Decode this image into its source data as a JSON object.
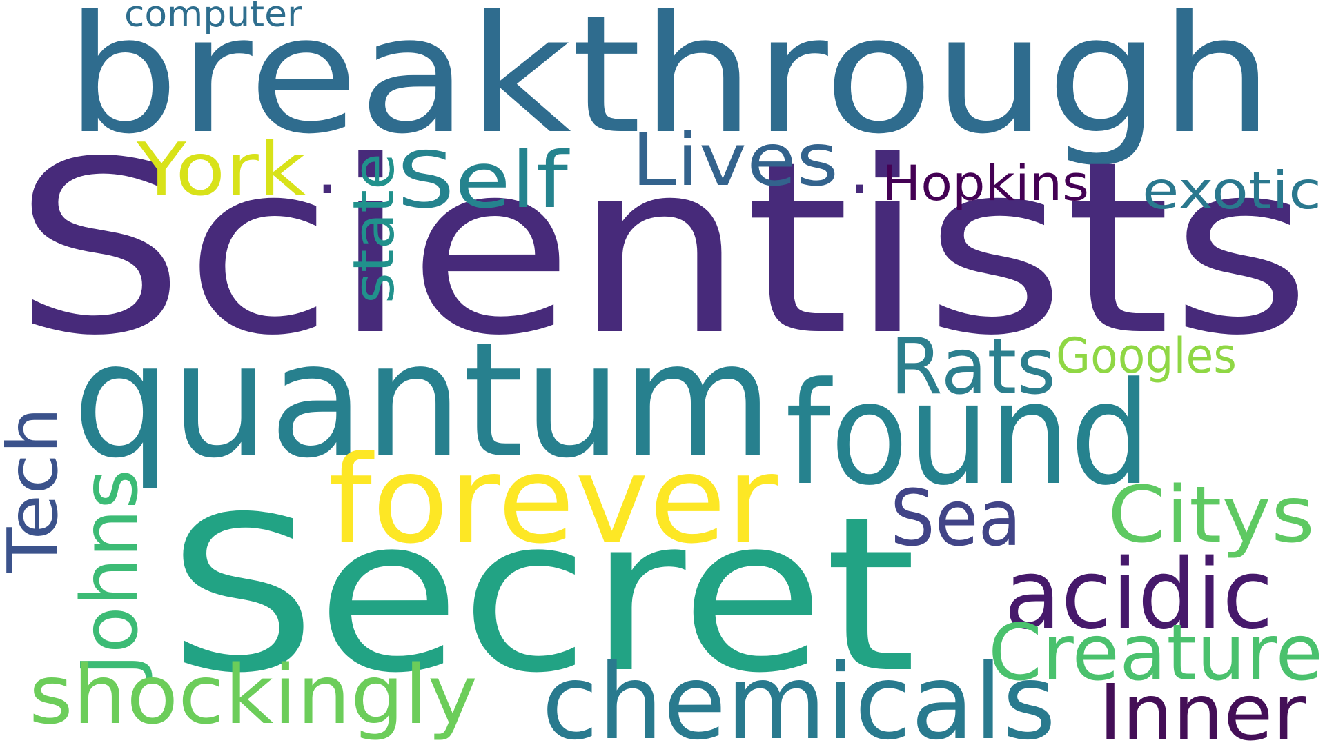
{
  "words": [
    {
      "id": "scientists",
      "text": "Scientists",
      "color": "#472a7a"
    },
    {
      "id": "secret",
      "text": "Secret",
      "color": "#22a384"
    },
    {
      "id": "breakthrough",
      "text": "breakthrough",
      "color": "#2f6c8e"
    },
    {
      "id": "quantum",
      "text": "quantum",
      "color": "#27808e"
    },
    {
      "id": "found",
      "text": "found",
      "color": "#26828e"
    },
    {
      "id": "forever",
      "text": "forever",
      "color": "#fde725"
    },
    {
      "id": "chemicals",
      "text": "chemicals",
      "color": "#297a8e"
    },
    {
      "id": "shockingly",
      "text": "shockingly",
      "color": "#6ccd5a"
    },
    {
      "id": "acidic",
      "text": "acidic",
      "color": "#46196b"
    },
    {
      "id": "creature",
      "text": "Creature",
      "color": "#4ac16d"
    },
    {
      "id": "inner",
      "text": "Inner",
      "color": "#440f57"
    },
    {
      "id": "citys",
      "text": "Citys",
      "color": "#5ec962"
    },
    {
      "id": "sea",
      "text": "Sea",
      "color": "#414487"
    },
    {
      "id": "rats",
      "text": "Rats",
      "color": "#2c7f8e"
    },
    {
      "id": "googles",
      "text": "Googles",
      "color": "#8fd744"
    },
    {
      "id": "self",
      "text": "Self",
      "color": "#25838e"
    },
    {
      "id": "york",
      "text": "York",
      "color": "#d8e219"
    },
    {
      "id": "lives",
      "text": "Lives",
      "color": "#33638d"
    },
    {
      "id": "hopkins",
      "text": "Hopkins",
      "color": "#440154"
    },
    {
      "id": "exotic",
      "text": "exotic",
      "color": "#2a788e"
    },
    {
      "id": "computer",
      "text": "computer",
      "color": "#2e6e8e"
    },
    {
      "id": "state",
      "text": "state",
      "color": "#21918c"
    },
    {
      "id": "johns",
      "text": "Johns",
      "color": "#3cbb75"
    },
    {
      "id": "tech",
      "text": "Tech",
      "color": "#3b528b"
    },
    {
      "id": "dot1",
      "text": ".",
      "color": "#472a7a"
    },
    {
      "id": "dot2",
      "text": ".",
      "color": "#472a7a"
    }
  ]
}
